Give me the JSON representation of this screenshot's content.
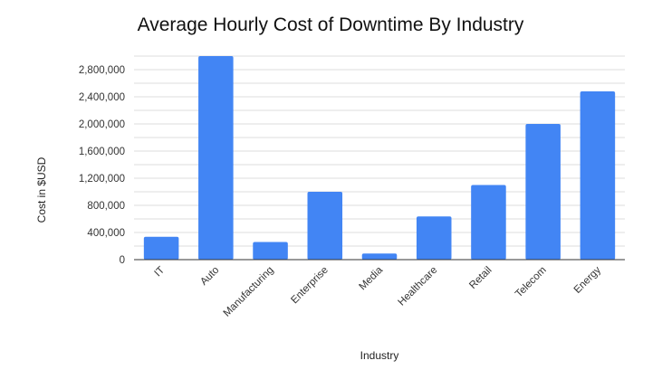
{
  "chart_data": {
    "type": "bar",
    "title": "Average Hourly Cost of Downtime By Industry",
    "xlabel": "Industry",
    "ylabel": "Cost in $USD",
    "categories": [
      "IT",
      "Auto",
      "Manufacturing",
      "Enterprise",
      "Media",
      "Healthcare",
      "Retail",
      "Telecom",
      "Energy"
    ],
    "values": [
      336000,
      3000000,
      260000,
      1000000,
      90000,
      636000,
      1100000,
      2000000,
      2480000
    ],
    "ylim": [
      0,
      3000000
    ],
    "yticks": [
      0,
      400000,
      800000,
      1200000,
      1600000,
      2000000,
      2400000,
      2800000
    ],
    "ytick_labels": [
      "0",
      "400,000",
      "800,000",
      "1,200,000",
      "1,600,000",
      "2,000,000",
      "2,400,000",
      "2,800,000"
    ],
    "grid": true,
    "bar_color": "#4285f4",
    "legend": "none"
  }
}
